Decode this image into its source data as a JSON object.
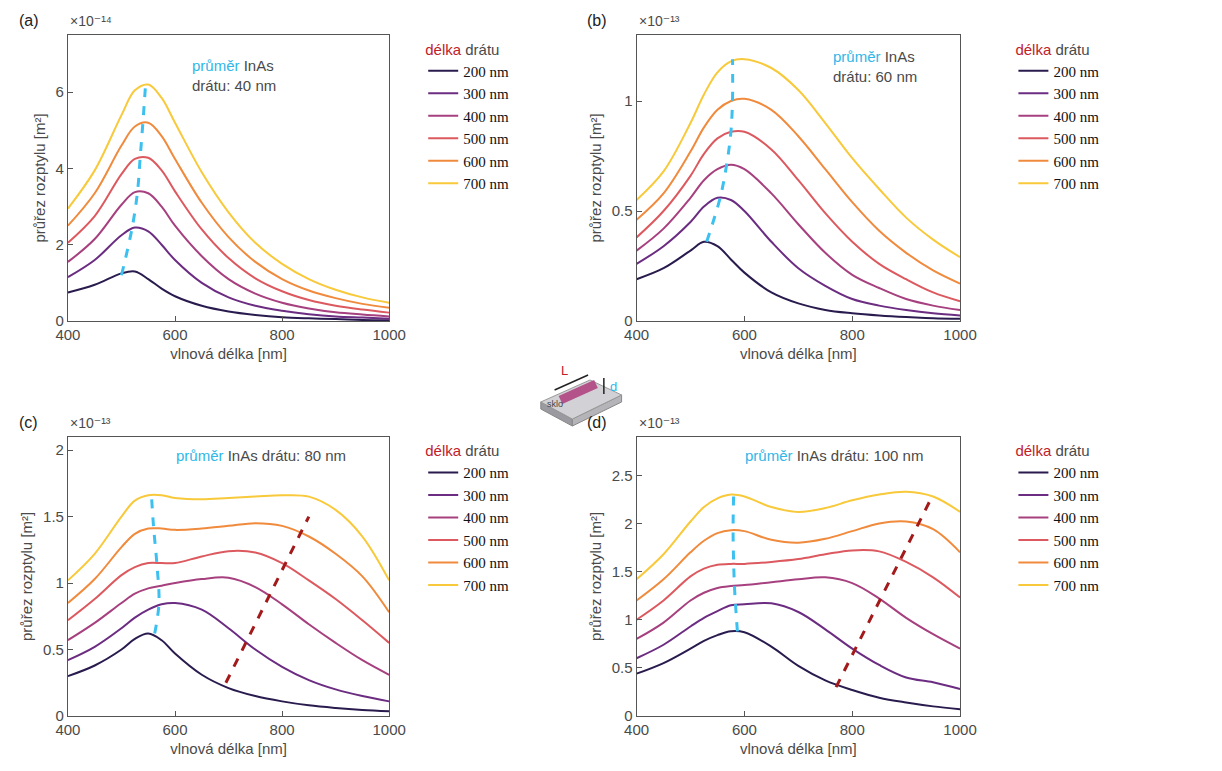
{
  "chart_data": [
    {
      "type": "line",
      "panel_label": "(a)",
      "y_multiplier": "×10⁻¹⁴",
      "annotation": "průměr InAs drátu: 40 nm",
      "legend_title": "délka drátu",
      "legend": "right",
      "x_label": "vlnová délka [nm]",
      "y_label": "průřez rozptylu [m²]",
      "grid": false,
      "xlim": [
        400,
        1000
      ],
      "xticks": [
        400,
        600,
        800,
        1000
      ],
      "ylim": [
        0,
        7.5
      ],
      "yticks": [
        0,
        2,
        4,
        6
      ],
      "x": [
        400,
        450,
        500,
        525,
        550,
        575,
        600,
        650,
        700,
        750,
        800,
        850,
        900,
        950,
        1000
      ],
      "series": [
        {
          "name": "200 nm",
          "color": "#2a1b4e",
          "values": [
            0.75,
            0.95,
            1.25,
            1.3,
            1.1,
            0.85,
            0.65,
            0.4,
            0.25,
            0.16,
            0.1,
            0.07,
            0.05,
            0.03,
            0.02
          ]
        },
        {
          "name": "300 nm",
          "color": "#6b2c82",
          "values": [
            1.15,
            1.6,
            2.25,
            2.45,
            2.35,
            2.0,
            1.6,
            1.0,
            0.62,
            0.4,
            0.27,
            0.18,
            0.12,
            0.09,
            0.06
          ]
        },
        {
          "name": "400 nm",
          "color": "#a6407f",
          "values": [
            1.55,
            2.15,
            3.05,
            3.38,
            3.35,
            3.0,
            2.5,
            1.7,
            1.1,
            0.72,
            0.48,
            0.33,
            0.23,
            0.17,
            0.12
          ]
        },
        {
          "name": "500 nm",
          "color": "#dc5a5f",
          "values": [
            2.05,
            2.75,
            3.85,
            4.25,
            4.28,
            3.95,
            3.4,
            2.4,
            1.65,
            1.12,
            0.78,
            0.55,
            0.4,
            0.3,
            0.22
          ]
        },
        {
          "name": "600 nm",
          "color": "#f08a3c",
          "values": [
            2.5,
            3.35,
            4.6,
            5.1,
            5.2,
            4.85,
            4.25,
            3.1,
            2.2,
            1.55,
            1.1,
            0.8,
            0.6,
            0.45,
            0.35
          ]
        },
        {
          "name": "700 nm",
          "color": "#f8c93a",
          "values": [
            2.95,
            3.95,
            5.4,
            6.05,
            6.2,
            5.85,
            5.2,
            3.9,
            2.85,
            2.05,
            1.5,
            1.1,
            0.82,
            0.62,
            0.48
          ]
        }
      ],
      "trend_lines": [
        {
          "color": "#3cc0ef",
          "line_style": "dashed",
          "x": [
            500,
            520,
            530,
            535,
            540,
            545
          ],
          "y": [
            1.2,
            2.45,
            3.4,
            4.3,
            5.2,
            6.2
          ]
        }
      ]
    },
    {
      "type": "line",
      "panel_label": "(b)",
      "y_multiplier": "×10⁻¹³",
      "annotation": "průměr InAs drátu: 60 nm",
      "legend_title": "délka drátu",
      "legend": "right",
      "x_label": "vlnová délka [nm]",
      "y_label": "průřez rozptylu [m²]",
      "grid": false,
      "xlim": [
        400,
        1000
      ],
      "xticks": [
        400,
        600,
        800,
        1000
      ],
      "ylim": [
        0,
        1.3
      ],
      "yticks": [
        0,
        0.5,
        1
      ],
      "x": [
        400,
        450,
        500,
        525,
        550,
        575,
        600,
        650,
        700,
        750,
        800,
        850,
        900,
        950,
        1000
      ],
      "series": [
        {
          "name": "200 nm",
          "color": "#2a1b4e",
          "values": [
            0.19,
            0.24,
            0.32,
            0.36,
            0.34,
            0.28,
            0.22,
            0.13,
            0.08,
            0.05,
            0.035,
            0.025,
            0.018,
            0.013,
            0.01
          ]
        },
        {
          "name": "300 nm",
          "color": "#6b2c82",
          "values": [
            0.26,
            0.34,
            0.45,
            0.52,
            0.56,
            0.55,
            0.5,
            0.36,
            0.24,
            0.16,
            0.1,
            0.07,
            0.05,
            0.035,
            0.025
          ]
        },
        {
          "name": "400 nm",
          "color": "#a6407f",
          "values": [
            0.32,
            0.42,
            0.56,
            0.64,
            0.69,
            0.71,
            0.69,
            0.58,
            0.44,
            0.31,
            0.21,
            0.15,
            0.1,
            0.07,
            0.05
          ]
        },
        {
          "name": "500 nm",
          "color": "#dc5a5f",
          "values": [
            0.38,
            0.5,
            0.66,
            0.76,
            0.83,
            0.86,
            0.86,
            0.78,
            0.64,
            0.49,
            0.36,
            0.26,
            0.19,
            0.13,
            0.09
          ]
        },
        {
          "name": "600 nm",
          "color": "#f08a3c",
          "values": [
            0.46,
            0.58,
            0.77,
            0.88,
            0.96,
            1.0,
            1.01,
            0.96,
            0.84,
            0.69,
            0.54,
            0.41,
            0.31,
            0.23,
            0.17
          ]
        },
        {
          "name": "700 nm",
          "color": "#f8c93a",
          "values": [
            0.55,
            0.68,
            0.9,
            1.03,
            1.13,
            1.18,
            1.19,
            1.15,
            1.05,
            0.9,
            0.74,
            0.6,
            0.47,
            0.37,
            0.29
          ]
        }
      ],
      "trend_lines": [
        {
          "color": "#3cc0ef",
          "line_style": "dashed",
          "x": [
            530,
            555,
            567,
            575,
            578,
            578
          ],
          "y": [
            0.36,
            0.56,
            0.71,
            0.86,
            1.01,
            1.19
          ]
        }
      ]
    },
    {
      "type": "line",
      "panel_label": "(c)",
      "y_multiplier": "×10⁻¹³",
      "annotation": "průměr InAs drátu: 80 nm",
      "legend_title": "délka drátu",
      "legend": "right",
      "x_label": "vlnová délka [nm]",
      "y_label": "průřez rozptylu [m²]",
      "grid": false,
      "xlim": [
        400,
        1000
      ],
      "xticks": [
        400,
        600,
        800,
        1000
      ],
      "ylim": [
        0,
        2.1
      ],
      "yticks": [
        0,
        0.5,
        1,
        1.5,
        2
      ],
      "x": [
        400,
        450,
        500,
        525,
        550,
        575,
        600,
        650,
        700,
        750,
        800,
        850,
        900,
        950,
        1000
      ],
      "series": [
        {
          "name": "200 nm",
          "color": "#2a1b4e",
          "values": [
            0.3,
            0.38,
            0.5,
            0.58,
            0.62,
            0.57,
            0.47,
            0.31,
            0.21,
            0.15,
            0.11,
            0.08,
            0.06,
            0.045,
            0.035
          ]
        },
        {
          "name": "300 nm",
          "color": "#6b2c82",
          "values": [
            0.42,
            0.52,
            0.66,
            0.74,
            0.8,
            0.84,
            0.85,
            0.8,
            0.66,
            0.5,
            0.37,
            0.27,
            0.2,
            0.15,
            0.11
          ]
        },
        {
          "name": "400 nm",
          "color": "#a6407f",
          "values": [
            0.57,
            0.7,
            0.85,
            0.92,
            0.96,
            0.98,
            1.0,
            1.03,
            1.04,
            0.97,
            0.84,
            0.69,
            0.55,
            0.42,
            0.31
          ]
        },
        {
          "name": "500 nm",
          "color": "#dc5a5f",
          "values": [
            0.72,
            0.88,
            1.06,
            1.12,
            1.15,
            1.15,
            1.15,
            1.2,
            1.24,
            1.23,
            1.15,
            1.02,
            0.88,
            0.72,
            0.55
          ]
        },
        {
          "name": "600 nm",
          "color": "#f08a3c",
          "values": [
            0.85,
            1.03,
            1.27,
            1.37,
            1.41,
            1.41,
            1.4,
            1.41,
            1.43,
            1.45,
            1.43,
            1.35,
            1.22,
            1.05,
            0.78
          ]
        },
        {
          "name": "700 nm",
          "color": "#f8c93a",
          "values": [
            1.02,
            1.22,
            1.5,
            1.62,
            1.66,
            1.66,
            1.64,
            1.63,
            1.64,
            1.65,
            1.66,
            1.65,
            1.55,
            1.35,
            1.02
          ]
        }
      ],
      "trend_lines": [
        {
          "color": "#3cc0ef",
          "line_style": "dashed",
          "x": [
            562,
            570,
            566,
            560,
            556
          ],
          "y": [
            0.62,
            0.85,
            1.15,
            1.42,
            1.66
          ]
        },
        {
          "color": "#a31a1a",
          "line_style": "dashed",
          "x": [
            695,
            850
          ],
          "y": [
            0.25,
            1.5
          ]
        }
      ]
    },
    {
      "type": "line",
      "panel_label": "(d)",
      "y_multiplier": "×10⁻¹³",
      "annotation": "průměr InAs drátu: 100 nm",
      "legend_title": "délka drátu",
      "legend": "right",
      "x_label": "vlnová délka [nm]",
      "y_label": "průřez rozptylu [m²]",
      "grid": false,
      "xlim": [
        400,
        1000
      ],
      "xticks": [
        400,
        600,
        800,
        1000
      ],
      "ylim": [
        0,
        2.9
      ],
      "yticks": [
        0,
        0.5,
        1,
        1.5,
        2,
        2.5
      ],
      "x": [
        400,
        450,
        500,
        525,
        550,
        575,
        600,
        650,
        700,
        750,
        800,
        850,
        900,
        950,
        1000
      ],
      "series": [
        {
          "name": "200 nm",
          "color": "#2a1b4e",
          "values": [
            0.44,
            0.55,
            0.7,
            0.78,
            0.84,
            0.88,
            0.87,
            0.72,
            0.52,
            0.37,
            0.27,
            0.19,
            0.14,
            0.1,
            0.07
          ]
        },
        {
          "name": "300 nm",
          "color": "#6b2c82",
          "values": [
            0.6,
            0.74,
            0.93,
            1.02,
            1.09,
            1.15,
            1.16,
            1.17,
            1.08,
            0.9,
            0.7,
            0.53,
            0.4,
            0.35,
            0.28
          ]
        },
        {
          "name": "400 nm",
          "color": "#a6407f",
          "values": [
            0.8,
            0.97,
            1.2,
            1.28,
            1.33,
            1.35,
            1.36,
            1.39,
            1.42,
            1.44,
            1.38,
            1.22,
            1.02,
            0.85,
            0.7
          ]
        },
        {
          "name": "500 nm",
          "color": "#dc5a5f",
          "values": [
            1.0,
            1.2,
            1.45,
            1.53,
            1.57,
            1.58,
            1.58,
            1.6,
            1.63,
            1.68,
            1.72,
            1.71,
            1.6,
            1.44,
            1.23
          ]
        },
        {
          "name": "600 nm",
          "color": "#f08a3c",
          "values": [
            1.2,
            1.42,
            1.7,
            1.82,
            1.9,
            1.93,
            1.92,
            1.83,
            1.8,
            1.84,
            1.92,
            2.0,
            2.02,
            1.94,
            1.7
          ]
        },
        {
          "name": "700 nm",
          "color": "#f8c93a",
          "values": [
            1.42,
            1.68,
            2.02,
            2.17,
            2.26,
            2.3,
            2.28,
            2.17,
            2.12,
            2.16,
            2.24,
            2.3,
            2.33,
            2.28,
            2.12
          ]
        }
      ],
      "trend_lines": [
        {
          "color": "#3cc0ef",
          "line_style": "dashed",
          "x": [
            587,
            582,
            580,
            579,
            580
          ],
          "y": [
            0.88,
            1.3,
            1.6,
            1.93,
            2.3
          ]
        },
        {
          "color": "#a31a1a",
          "line_style": "dashed",
          "x": [
            770,
            950
          ],
          "y": [
            0.3,
            2.3
          ]
        }
      ]
    }
  ],
  "inset": {
    "glass_label": "sklo",
    "length_label": "L",
    "diameter_label": "d"
  }
}
